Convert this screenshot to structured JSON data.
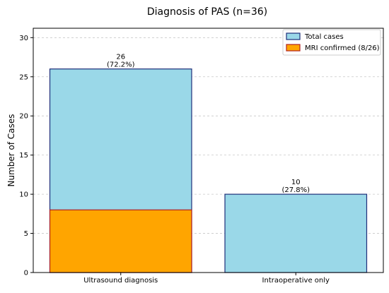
{
  "chart_data": {
    "type": "bar",
    "title": "Diagnosis of PAS (n=36)",
    "xlabel": "",
    "ylabel": "Number of Cases",
    "categories": [
      "Ultrasound diagnosis",
      "Intraoperative only"
    ],
    "series": [
      {
        "name": "Total cases",
        "values": [
          26,
          10
        ],
        "color": "#9ad8e8",
        "edge": "#1f2f7a"
      },
      {
        "name": "MRI confirmed (8/26)",
        "values": [
          8,
          null
        ],
        "color": "#ffa500",
        "edge": "#b22222"
      }
    ],
    "data_labels": [
      {
        "category": "Ultrasound diagnosis",
        "line1": "26",
        "line2": "(72.2%)",
        "y": 26
      },
      {
        "category": "Intraoperative only",
        "line1": "10",
        "line2": "(27.8%)",
        "y": 10
      }
    ],
    "yticks": [
      0,
      5,
      10,
      15,
      20,
      25,
      30
    ],
    "ylim": [
      0,
      31.2
    ],
    "grid": "y-dashed",
    "legend_position": "top-right"
  }
}
